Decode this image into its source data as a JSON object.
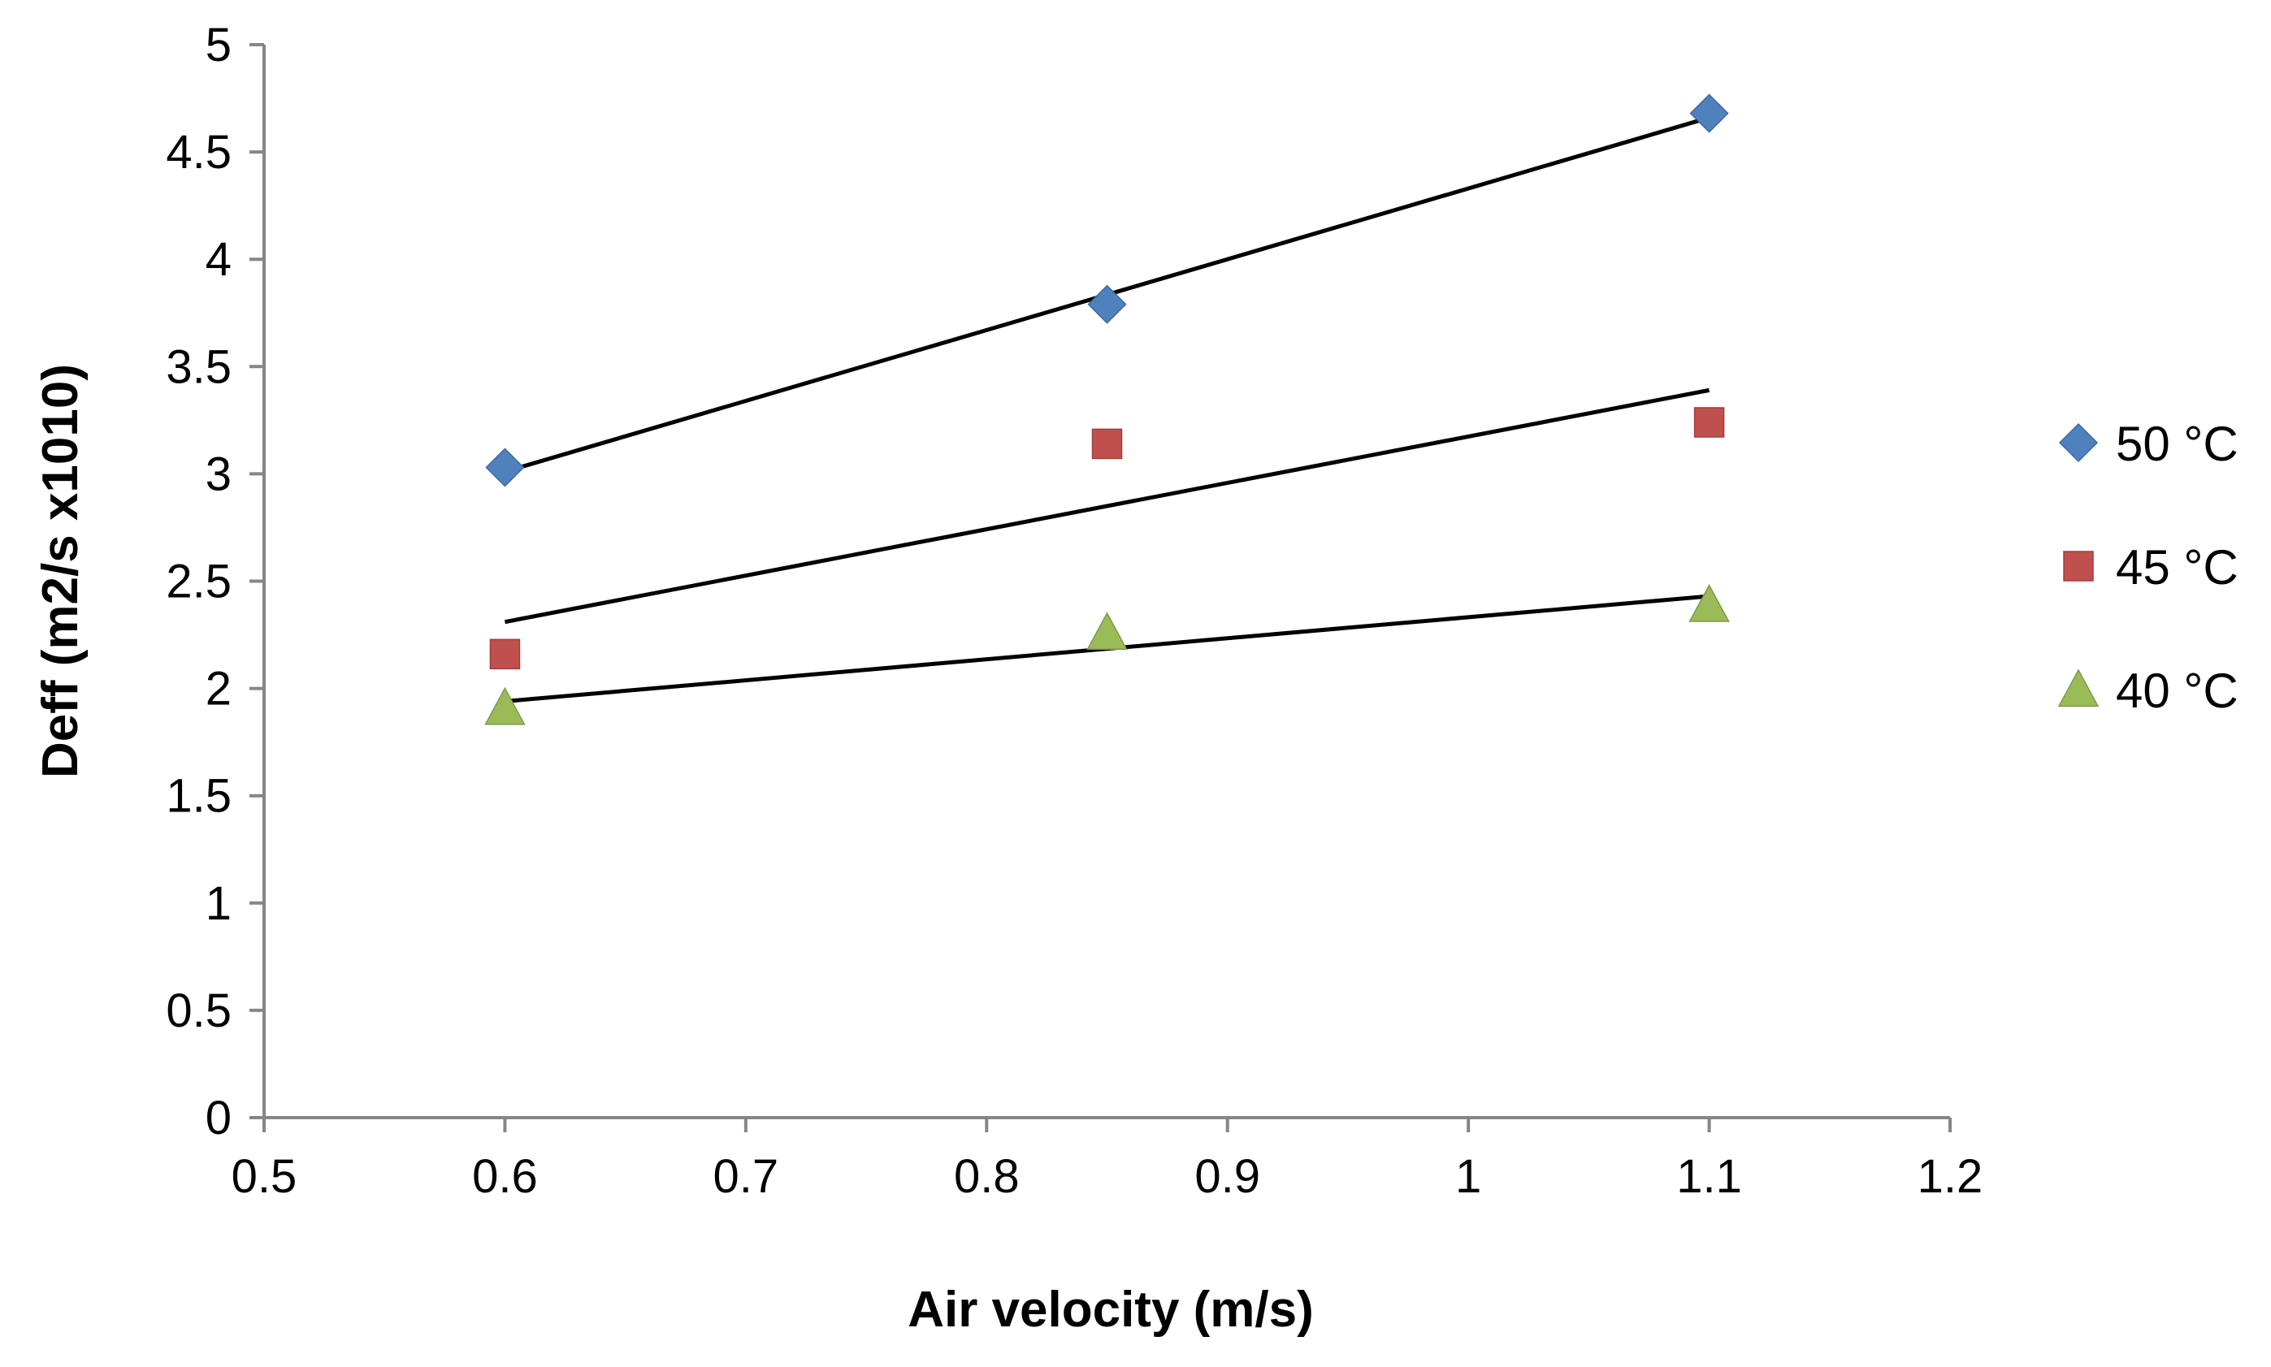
{
  "chart_data": {
    "type": "scatter",
    "title": "",
    "xlabel": "Air velocity (m/s)",
    "ylabel": "Deff (m2/s x1010)",
    "xlim": [
      0.5,
      1.2
    ],
    "ylim": [
      0,
      5
    ],
    "xticks": [
      "0.5",
      "0.6",
      "0.7",
      "0.8",
      "0.9",
      "1",
      "1.1",
      "1.2"
    ],
    "xtick_values": [
      0.5,
      0.6,
      0.7,
      0.8,
      0.9,
      1.0,
      1.1,
      1.2
    ],
    "yticks": [
      "0",
      "0.5",
      "1",
      "1.5",
      "2",
      "2.5",
      "3",
      "3.5",
      "4",
      "4.5",
      "5"
    ],
    "ytick_values": [
      0,
      0.5,
      1,
      1.5,
      2,
      2.5,
      3,
      3.5,
      4,
      4.5,
      5
    ],
    "grid": false,
    "legend_position": "right",
    "series": [
      {
        "name": "50 °C",
        "marker": "diamond",
        "color": "#4F81BD",
        "x": [
          0.6,
          0.85,
          1.1
        ],
        "y": [
          3.03,
          3.79,
          4.68
        ],
        "trendline": {
          "x": [
            0.6,
            1.1
          ],
          "y": [
            3.01,
            4.66
          ]
        }
      },
      {
        "name": "45 °C",
        "marker": "square",
        "color": "#C0504D",
        "x": [
          0.6,
          0.85,
          1.1
        ],
        "y": [
          2.16,
          3.14,
          3.24
        ],
        "trendline": {
          "x": [
            0.6,
            1.1
          ],
          "y": [
            2.31,
            3.39
          ]
        }
      },
      {
        "name": "40 °C",
        "marker": "triangle",
        "color": "#9BBB59",
        "x": [
          0.6,
          0.85,
          1.1
        ],
        "y": [
          1.91,
          2.26,
          2.39
        ],
        "trendline": {
          "x": [
            0.6,
            1.1
          ],
          "y": [
            1.94,
            2.43
          ]
        }
      }
    ],
    "trendline_color": "#000000",
    "axis_color": "#868686"
  }
}
